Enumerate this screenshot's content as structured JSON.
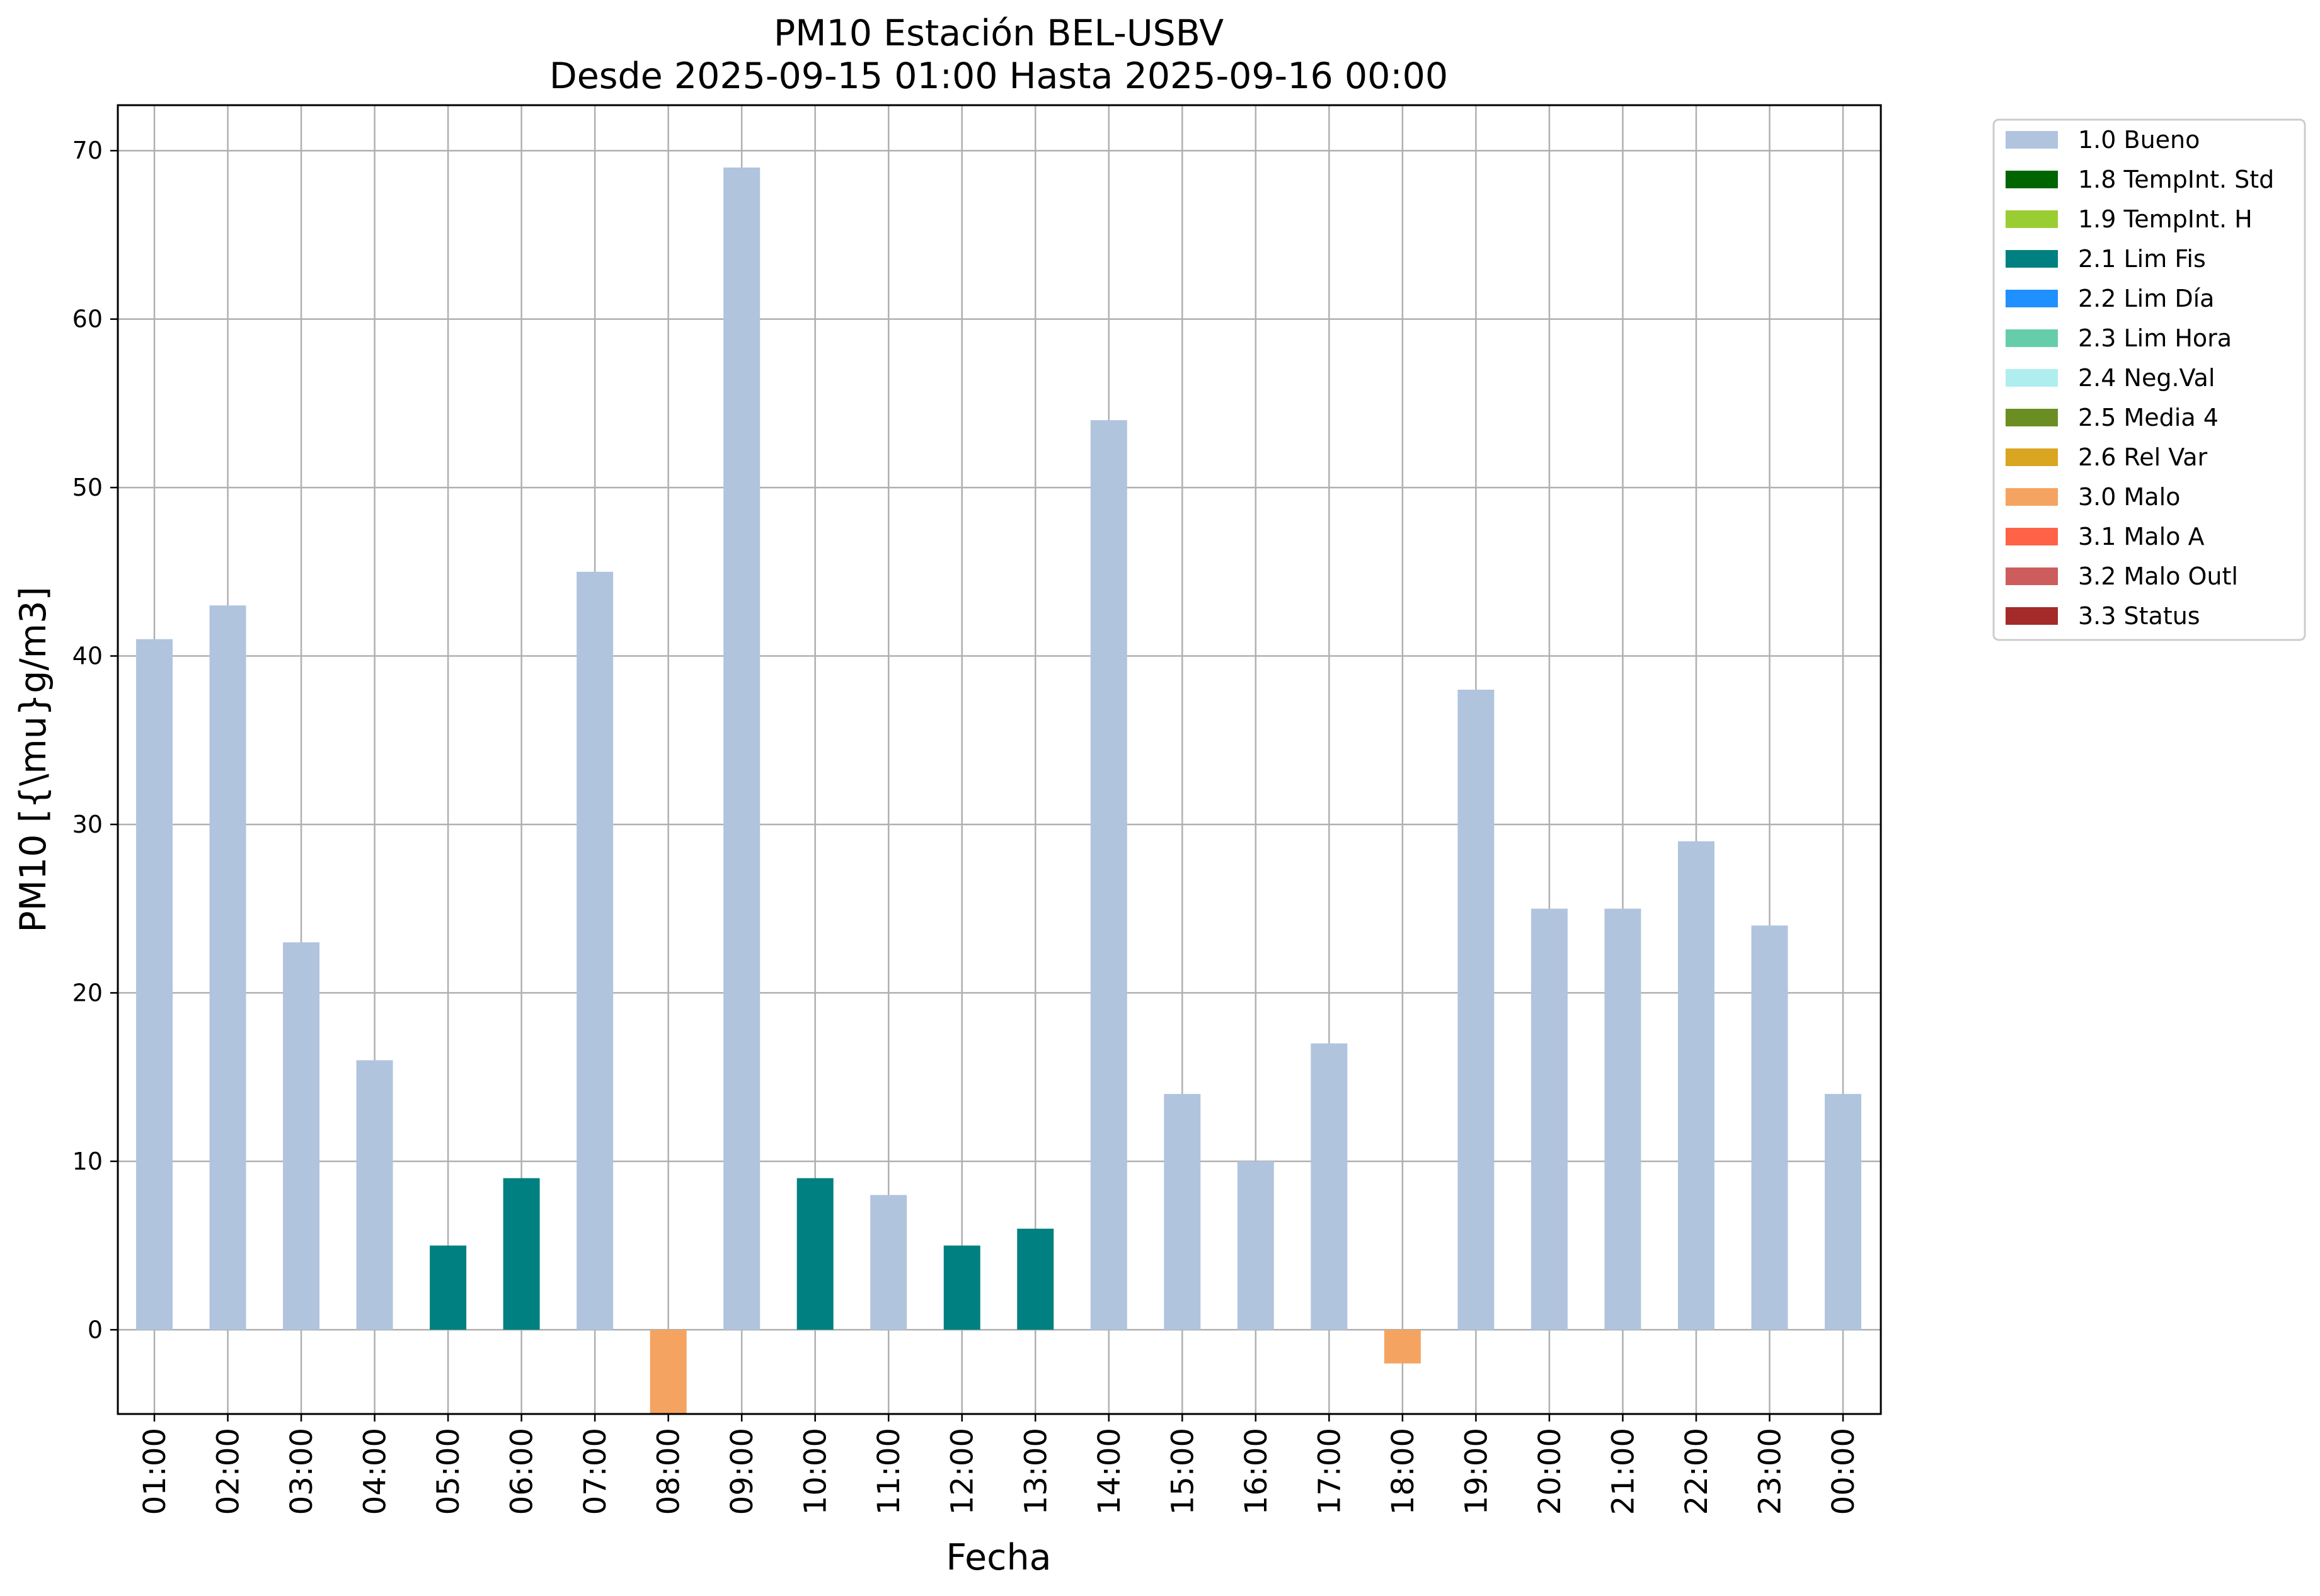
{
  "chart_data": {
    "type": "bar",
    "title_lines": [
      "PM10 Estación BEL-USBV",
      "Desde 2025-09-15 01:00 Hasta 2025-09-16 00:00"
    ],
    "xlabel": "Fecha",
    "ylabel": "PM10 [{\\mu}g/m3]",
    "categories": [
      "01:00",
      "02:00",
      "03:00",
      "04:00",
      "05:00",
      "06:00",
      "07:00",
      "08:00",
      "09:00",
      "10:00",
      "11:00",
      "12:00",
      "13:00",
      "14:00",
      "15:00",
      "16:00",
      "17:00",
      "18:00",
      "19:00",
      "20:00",
      "21:00",
      "22:00",
      "23:00",
      "00:00"
    ],
    "values": [
      41,
      43,
      23,
      16,
      5,
      9,
      45,
      -5,
      69,
      9,
      8,
      5,
      6,
      54,
      14,
      10,
      17,
      -2,
      38,
      25,
      25,
      29,
      24,
      14
    ],
    "flags": [
      "1.0 Bueno",
      "1.0 Bueno",
      "1.0 Bueno",
      "1.0 Bueno",
      "2.1 Lim Fis",
      "2.1 Lim Fis",
      "1.0 Bueno",
      "3.0 Malo",
      "1.0 Bueno",
      "2.1 Lim Fis",
      "1.0 Bueno",
      "2.1 Lim Fis",
      "2.1 Lim Fis",
      "1.0 Bueno",
      "1.0 Bueno",
      "1.0 Bueno",
      "1.0 Bueno",
      "3.0 Malo",
      "1.0 Bueno",
      "1.0 Bueno",
      "1.0 Bueno",
      "1.0 Bueno",
      "1.0 Bueno",
      "1.0 Bueno"
    ],
    "ylim": [
      -5,
      72.7
    ],
    "yticks": [
      0,
      10,
      20,
      30,
      40,
      50,
      60,
      70
    ],
    "grid": true,
    "legend_position": "outside-top-right",
    "legend": [
      {
        "label": "1.0 Bueno",
        "color": "#b0c4de"
      },
      {
        "label": "1.8 TempInt. Std",
        "color": "#006400"
      },
      {
        "label": "1.9 TempInt. H",
        "color": "#9acd32"
      },
      {
        "label": "2.1 Lim Fis",
        "color": "#008080"
      },
      {
        "label": "2.2 Lim Día",
        "color": "#1e90ff"
      },
      {
        "label": "2.3 Lim Hora",
        "color": "#66cdaa"
      },
      {
        "label": "2.4 Neg.Val",
        "color": "#afeeee"
      },
      {
        "label": "2.5 Media 4",
        "color": "#6b8e23"
      },
      {
        "label": "2.6 Rel Var",
        "color": "#daa520"
      },
      {
        "label": "3.0 Malo",
        "color": "#f4a460"
      },
      {
        "label": "3.1 Malo A",
        "color": "#ff6347"
      },
      {
        "label": "3.2 Malo Outl",
        "color": "#cd5c5c"
      },
      {
        "label": "3.3 Status",
        "color": "#a52a2a"
      }
    ]
  }
}
